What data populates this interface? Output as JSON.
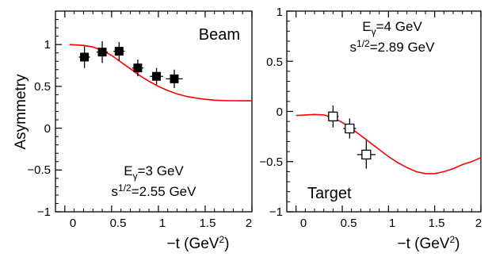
{
  "chart_data": [
    {
      "type": "scatter",
      "title": "",
      "xlabel": "−t (GeV²)",
      "ylabel": "Asymmetry",
      "xlim": [
        -0.1,
        2.0
      ],
      "ylim": [
        -1.0,
        1.4
      ],
      "x_ticks": [
        0,
        0.5,
        1,
        1.5,
        2
      ],
      "x_tick_labels": [
        "0",
        "0.5",
        "1",
        "1.5",
        "2"
      ],
      "y_ticks": [
        -1,
        -0.5,
        0,
        0.5,
        1
      ],
      "y_tick_labels": [
        "−1",
        "−0.5",
        "0",
        "0.5",
        "1"
      ],
      "panel_label": "Beam",
      "annotations": [
        "Eγ=3 GeV",
        "s¹ᐟ²=2.55 GeV"
      ],
      "annotation_parts": {
        "energy_symbol": "E",
        "energy_sub": "γ",
        "energy_value": "=3 GeV",
        "s_symbol": "s",
        "s_sup": "1/2",
        "s_value": "=2.55 GeV"
      },
      "series": [
        {
          "marker": "filled-square",
          "points": [
            {
              "x": 0.21,
              "y": 0.85,
              "xerr": 0.06,
              "yerr": 0.13
            },
            {
              "x": 0.4,
              "y": 0.91,
              "xerr": 0.06,
              "yerr": 0.13
            },
            {
              "x": 0.58,
              "y": 0.92,
              "xerr": 0.06,
              "yerr": 0.11
            },
            {
              "x": 0.78,
              "y": 0.72,
              "xerr": 0.06,
              "yerr": 0.1
            },
            {
              "x": 0.98,
              "y": 0.62,
              "xerr": 0.07,
              "yerr": 0.1
            },
            {
              "x": 1.17,
              "y": 0.59,
              "xerr": 0.09,
              "yerr": 0.11
            }
          ]
        }
      ],
      "curve": {
        "color": "#ff0000",
        "x": [
          0.05,
          0.2,
          0.3,
          0.4,
          0.5,
          0.6,
          0.7,
          0.8,
          0.9,
          1.0,
          1.1,
          1.2,
          1.3,
          1.4,
          1.5,
          1.6,
          1.7,
          1.8,
          1.9,
          2.0
        ],
        "y": [
          1.0,
          0.99,
          0.97,
          0.93,
          0.87,
          0.79,
          0.71,
          0.63,
          0.56,
          0.5,
          0.45,
          0.41,
          0.38,
          0.36,
          0.345,
          0.335,
          0.33,
          0.328,
          0.327,
          0.327
        ]
      }
    },
    {
      "type": "scatter",
      "title": "",
      "xlabel": "−t (GeV²)",
      "ylabel": "",
      "xlim": [
        -0.1,
        2.0
      ],
      "ylim": [
        -1.0,
        1.0
      ],
      "x_ticks": [
        0,
        0.5,
        1,
        1.5,
        2
      ],
      "x_tick_labels": [
        "0",
        "0.5",
        "1",
        "1.5",
        "2"
      ],
      "y_ticks": [
        -1,
        -0.5,
        0,
        0.5,
        1
      ],
      "y_tick_labels": [
        "−1",
        "−0.5",
        "0",
        "0.5",
        "1"
      ],
      "panel_label": "Target",
      "annotations": [
        "Eγ=4 GeV",
        "s¹ᐟ²=2.89 GeV"
      ],
      "annotation_parts": {
        "energy_symbol": "E",
        "energy_sub": "γ",
        "energy_value": "=4 GeV",
        "s_symbol": "s",
        "s_sup": "1/2",
        "s_value": "=2.89 GeV"
      },
      "series": [
        {
          "marker": "open-square",
          "points": [
            {
              "x": 0.4,
              "y": -0.05,
              "xerr": 0.06,
              "yerr": 0.11
            },
            {
              "x": 0.58,
              "y": -0.17,
              "xerr": 0.07,
              "yerr": 0.1
            },
            {
              "x": 0.76,
              "y": -0.43,
              "xerr": 0.1,
              "yerr": 0.14
            }
          ]
        }
      ],
      "curve": {
        "color": "#ff0000",
        "x": [
          0.0,
          0.2,
          0.3,
          0.4,
          0.5,
          0.6,
          0.7,
          0.8,
          0.9,
          1.0,
          1.1,
          1.2,
          1.3,
          1.4,
          1.5,
          1.6,
          1.7,
          1.8,
          1.9,
          2.0
        ],
        "y": [
          -0.04,
          -0.03,
          -0.035,
          -0.06,
          -0.11,
          -0.17,
          -0.24,
          -0.31,
          -0.38,
          -0.45,
          -0.51,
          -0.56,
          -0.6,
          -0.62,
          -0.62,
          -0.6,
          -0.57,
          -0.53,
          -0.5,
          -0.46
        ]
      }
    }
  ]
}
